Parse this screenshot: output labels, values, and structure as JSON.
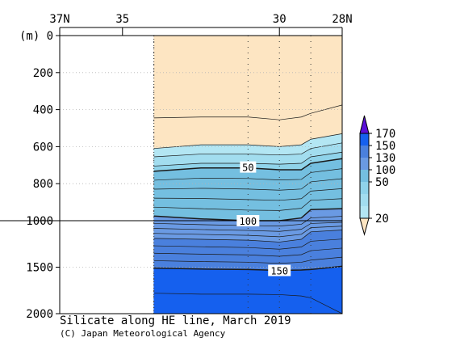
{
  "chart_data": {
    "type": "contour",
    "title": "Silicate along HE line, March 2019",
    "credit": "(C) Japan Meteorological Agency",
    "y_unit_label": "(m)",
    "x_ticks": [
      {
        "value": 37,
        "label": "37N"
      },
      {
        "value": 35,
        "label": "35"
      },
      {
        "value": 30,
        "label": "30"
      },
      {
        "value": 28,
        "label": "28N"
      }
    ],
    "xlim": [
      37,
      28
    ],
    "y_scale": "piecewise-linear (0–1000 m and 1000–2000 m)",
    "y_ticks": [
      0,
      200,
      400,
      600,
      800,
      1000,
      1500,
      2000
    ],
    "ylim": [
      0,
      2000
    ],
    "grid": true,
    "station_latitudes": [
      34,
      31,
      30,
      29
    ],
    "data_extent_lat": [
      34,
      28
    ],
    "colorbar": {
      "labels": [
        20,
        50,
        100,
        130,
        150,
        170
      ],
      "levels": [
        {
          "max": 20,
          "color": "#fde5c2"
        },
        {
          "max": 30,
          "color": "#b3e6f3"
        },
        {
          "max": 40,
          "color": "#a2ddef"
        },
        {
          "max": 50,
          "color": "#8fd3ea"
        },
        {
          "max": 100,
          "color": "#74bfe0"
        },
        {
          "max": 130,
          "color": "#6a9ae3"
        },
        {
          "max": 150,
          "color": "#4a80dd"
        },
        {
          "max": 170,
          "color": "#1560ee"
        },
        {
          "max": 999,
          "color": "#5a0fd8"
        }
      ]
    },
    "contour_labels": [
      {
        "value": 50,
        "lat": 31,
        "depth": 710
      },
      {
        "value": 100,
        "lat": 31,
        "depth": 1000
      },
      {
        "value": 150,
        "lat": 30,
        "depth": 1535
      }
    ],
    "bands": [
      {
        "range": "<20",
        "color": "#fde5c2",
        "top": [
          0,
          0,
          0,
          0,
          0,
          0,
          0
        ],
        "bottom": [
          610,
          590,
          590,
          600,
          590,
          560,
          530
        ]
      },
      {
        "range": "20-30",
        "color": "#b3e6f3",
        "top": [
          610,
          590,
          590,
          600,
          590,
          560,
          530
        ],
        "bottom": [
          655,
          640,
          640,
          645,
          640,
          610,
          580
        ]
      },
      {
        "range": "30-40",
        "color": "#a2ddef",
        "top": [
          655,
          640,
          640,
          645,
          640,
          610,
          580
        ],
        "bottom": [
          705,
          690,
          690,
          695,
          690,
          655,
          630
        ]
      },
      {
        "range": "40-50",
        "color": "#8fd3ea",
        "top": [
          705,
          690,
          690,
          695,
          690,
          655,
          630
        ],
        "bottom": [
          733,
          715,
          715,
          725,
          725,
          690,
          665
        ]
      },
      {
        "range": "50-100",
        "color": "#74bfe0",
        "top": [
          733,
          715,
          715,
          725,
          725,
          690,
          665
        ],
        "bottom": [
          975,
          990,
          1000,
          1000,
          985,
          940,
          935
        ]
      },
      {
        "range": "100-130",
        "color": "#6a9ae3",
        "top": [
          975,
          990,
          1000,
          1000,
          985,
          940,
          935
        ],
        "bottom": [
          1190,
          1200,
          1210,
          1230,
          1200,
          1120,
          1100
        ]
      },
      {
        "range": "130-150",
        "color": "#4a80dd",
        "top": [
          1190,
          1200,
          1210,
          1230,
          1200,
          1120,
          1100
        ],
        "bottom": [
          1510,
          1520,
          1525,
          1535,
          1530,
          1525,
          1490
        ]
      },
      {
        "range": "150-170",
        "color": "#1560ee",
        "top": [
          1510,
          1520,
          1525,
          1535,
          1530,
          1525,
          1490
        ],
        "bottom": [
          2000,
          2000,
          2000,
          2000,
          2000,
          2000,
          2000
        ]
      }
    ],
    "band_lats": [
      34,
      32.5,
      31,
      30,
      29.3,
      29,
      28
    ]
  }
}
